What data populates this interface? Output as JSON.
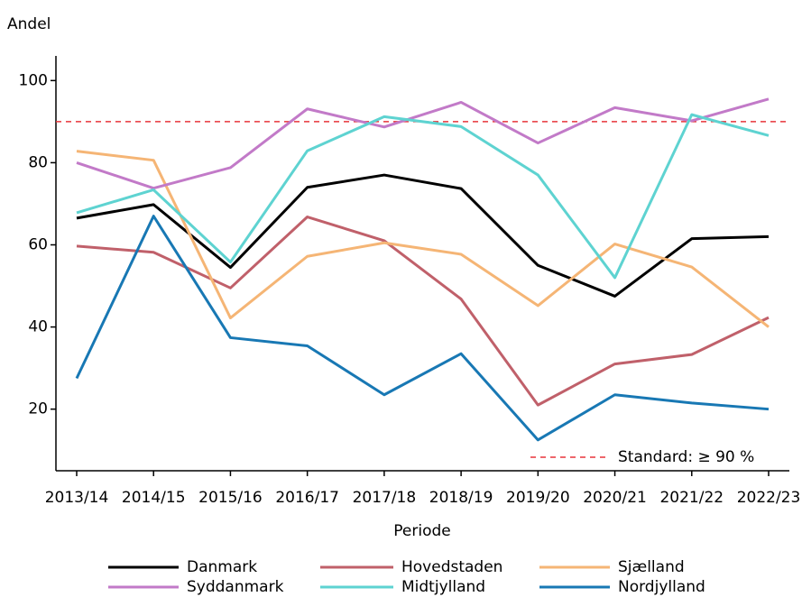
{
  "chart_data": {
    "type": "line",
    "y_label": "Andel",
    "x_label": "Periode",
    "categories": [
      "2013/14",
      "2014/15",
      "2015/16",
      "2016/17",
      "2017/18",
      "2018/19",
      "2019/20",
      "2020/21",
      "2021/22",
      "2022/23"
    ],
    "series": [
      {
        "name": "Danmark",
        "color": "#000000",
        "values": [
          66.5,
          69.8,
          54.5,
          74,
          77,
          73.7,
          55,
          47.5,
          61.5,
          62
        ]
      },
      {
        "name": "Hovedstaden",
        "color": "#c0606a",
        "values": [
          59.7,
          58.2,
          49.5,
          66.8,
          61,
          46.8,
          21,
          31,
          33.3,
          42.3
        ]
      },
      {
        "name": "Sjælland",
        "color": "#f5b575",
        "values": [
          82.8,
          80.6,
          42.2,
          57.2,
          60.5,
          57.7,
          45.2,
          60.2,
          54.6,
          40
        ]
      },
      {
        "name": "Syddanmark",
        "color": "#c27ac8",
        "values": [
          80,
          73.8,
          78.8,
          93.1,
          88.7,
          94.7,
          84.8,
          93.4,
          90.2,
          95.5
        ]
      },
      {
        "name": "Midtjylland",
        "color": "#5ed3d1",
        "values": [
          67.8,
          73.4,
          55.8,
          82.9,
          91.2,
          88.8,
          77,
          52,
          91.7,
          86.6
        ]
      },
      {
        "name": "Nordjylland",
        "color": "#1878b4",
        "values": [
          27.5,
          67,
          37.4,
          35.4,
          23.5,
          33.5,
          12.5,
          23.5,
          21.5,
          20
        ]
      }
    ],
    "reference": {
      "value": 90,
      "label": "Standard: ≥ 90 %",
      "color": "#e8343a"
    },
    "ylim": [
      5,
      106
    ],
    "yticks": [
      20,
      40,
      60,
      80,
      100
    ],
    "grid": false,
    "legend": "bottom"
  }
}
